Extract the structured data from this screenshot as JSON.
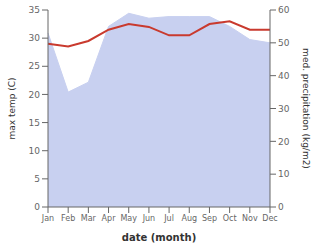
{
  "chart_data": {
    "type": "line",
    "xlabel": "date (month)",
    "ylabel": "max temp (C)",
    "y2label": "med. precipitation (kg/m2)",
    "categories": [
      "Jan",
      "Feb",
      "Mar",
      "Apr",
      "May",
      "Jun",
      "Jul",
      "Aug",
      "Sep",
      "Oct",
      "Nov",
      "Dec"
    ],
    "series": [
      {
        "type": "area",
        "axis": "y2",
        "color": "#c8d0f0",
        "values": [
          53.0,
          35.0,
          38.0,
          55.0,
          59.0,
          57.5,
          58.0,
          58.0,
          58.0,
          55.0,
          51.0,
          50.0
        ]
      },
      {
        "type": "line",
        "axis": "y",
        "color": "#c93a2e",
        "values": [
          29.0,
          28.5,
          29.5,
          31.5,
          32.5,
          32.0,
          30.5,
          30.5,
          32.5,
          33.0,
          31.5,
          31.5
        ]
      }
    ],
    "ylim": [
      0,
      35
    ],
    "yticks": [
      0,
      5,
      10,
      15,
      20,
      25,
      30,
      35
    ],
    "y2lim": [
      0,
      60
    ],
    "y2ticks": [
      0,
      10,
      20,
      30,
      40,
      50,
      60
    ],
    "grid": false
  }
}
